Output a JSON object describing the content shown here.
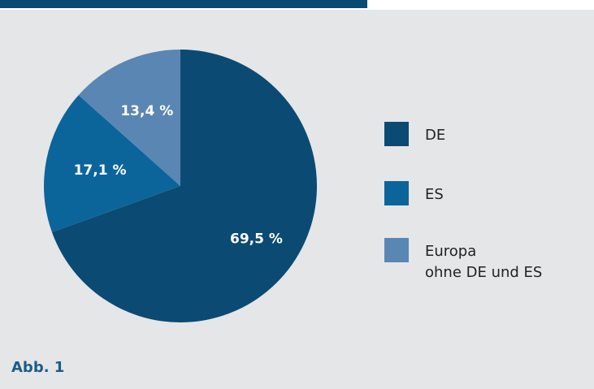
{
  "chart_data": {
    "type": "pie",
    "caption": "Abb. 1",
    "series": [
      {
        "name": "DE",
        "color": "#0b4a73",
        "values": [
          69.5
        ],
        "value_labels": [
          "69,5 %"
        ]
      },
      {
        "name": "ES",
        "color": "#0c659a",
        "values": [
          17.1
        ],
        "value_labels": [
          "17,1 %"
        ]
      },
      {
        "name": "Europa\nohne DE und ES",
        "color": "#5a86b3",
        "values": [
          13.4
        ],
        "value_labels": [
          "13,4 %"
        ]
      }
    ]
  }
}
